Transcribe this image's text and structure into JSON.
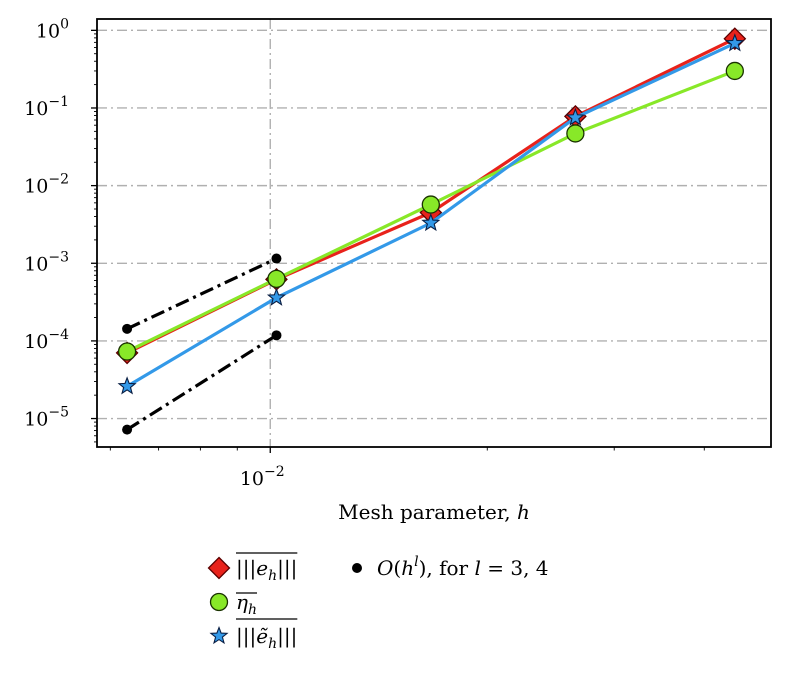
{
  "chart_data": {
    "type": "line",
    "xscale": "log",
    "yscale": "log",
    "xlabel": "Mesh parameter, h",
    "ylabel": "",
    "xlim": [
      0.00575,
      0.0495
    ],
    "ylim": [
      4.3e-06,
      1.4
    ],
    "x_ticks": [
      {
        "value": 0.01,
        "label": "10",
        "exp": "−2"
      }
    ],
    "y_ticks": [
      {
        "value": 1,
        "label": "10",
        "exp": "0"
      },
      {
        "value": 0.1,
        "label": "10",
        "exp": "−1"
      },
      {
        "value": 0.01,
        "label": "10",
        "exp": "−2"
      },
      {
        "value": 0.001,
        "label": "10",
        "exp": "−3"
      },
      {
        "value": 0.0001,
        "label": "10",
        "exp": "−4"
      },
      {
        "value": 1e-05,
        "label": "10",
        "exp": "−5"
      }
    ],
    "grid": true,
    "legend_position": "below plot",
    "series": [
      {
        "name": "|||e_h|||",
        "color": "#e8221b",
        "marker": "diamond",
        "x": [
          0.00633,
          0.0102,
          0.0167,
          0.0265,
          0.0441
        ],
        "y": [
          7e-05,
          0.00062,
          0.0045,
          0.078,
          0.78
        ]
      },
      {
        "name": "η_h",
        "color": "#88e828",
        "marker": "circle",
        "x": [
          0.00633,
          0.0102,
          0.0167,
          0.0265,
          0.0441
        ],
        "y": [
          7.3e-05,
          0.00063,
          0.0057,
          0.047,
          0.3
        ]
      },
      {
        "name": "|||ẽ_h|||",
        "color": "#3399e8",
        "marker": "star",
        "x": [
          0.00633,
          0.0102,
          0.0167,
          0.0265,
          0.0441
        ],
        "y": [
          2.6e-05,
          0.00036,
          0.0033,
          0.075,
          0.68
        ]
      }
    ],
    "reference_lines": [
      {
        "name": "O(h^3)",
        "x": [
          0.00633,
          0.0102
        ],
        "y": [
          0.000143,
          0.00115
        ]
      },
      {
        "name": "O(h^4)",
        "x": [
          0.00633,
          0.0102
        ],
        "y": [
          7.2e-06,
          0.000118
        ]
      }
    ],
    "legend": [
      {
        "key": "e",
        "marker": "diamond",
        "color": "#e8221b",
        "label": "|||e_h|||"
      },
      {
        "key": "eta",
        "marker": "circle",
        "color": "#88e828",
        "label": "η_h"
      },
      {
        "key": "et",
        "marker": "star",
        "color": "#3399e8",
        "label": "|||ẽ_h|||"
      },
      {
        "key": "ref",
        "marker": "dot",
        "color": "#000000",
        "label": "O(h^l), for l = 3, 4"
      }
    ]
  }
}
